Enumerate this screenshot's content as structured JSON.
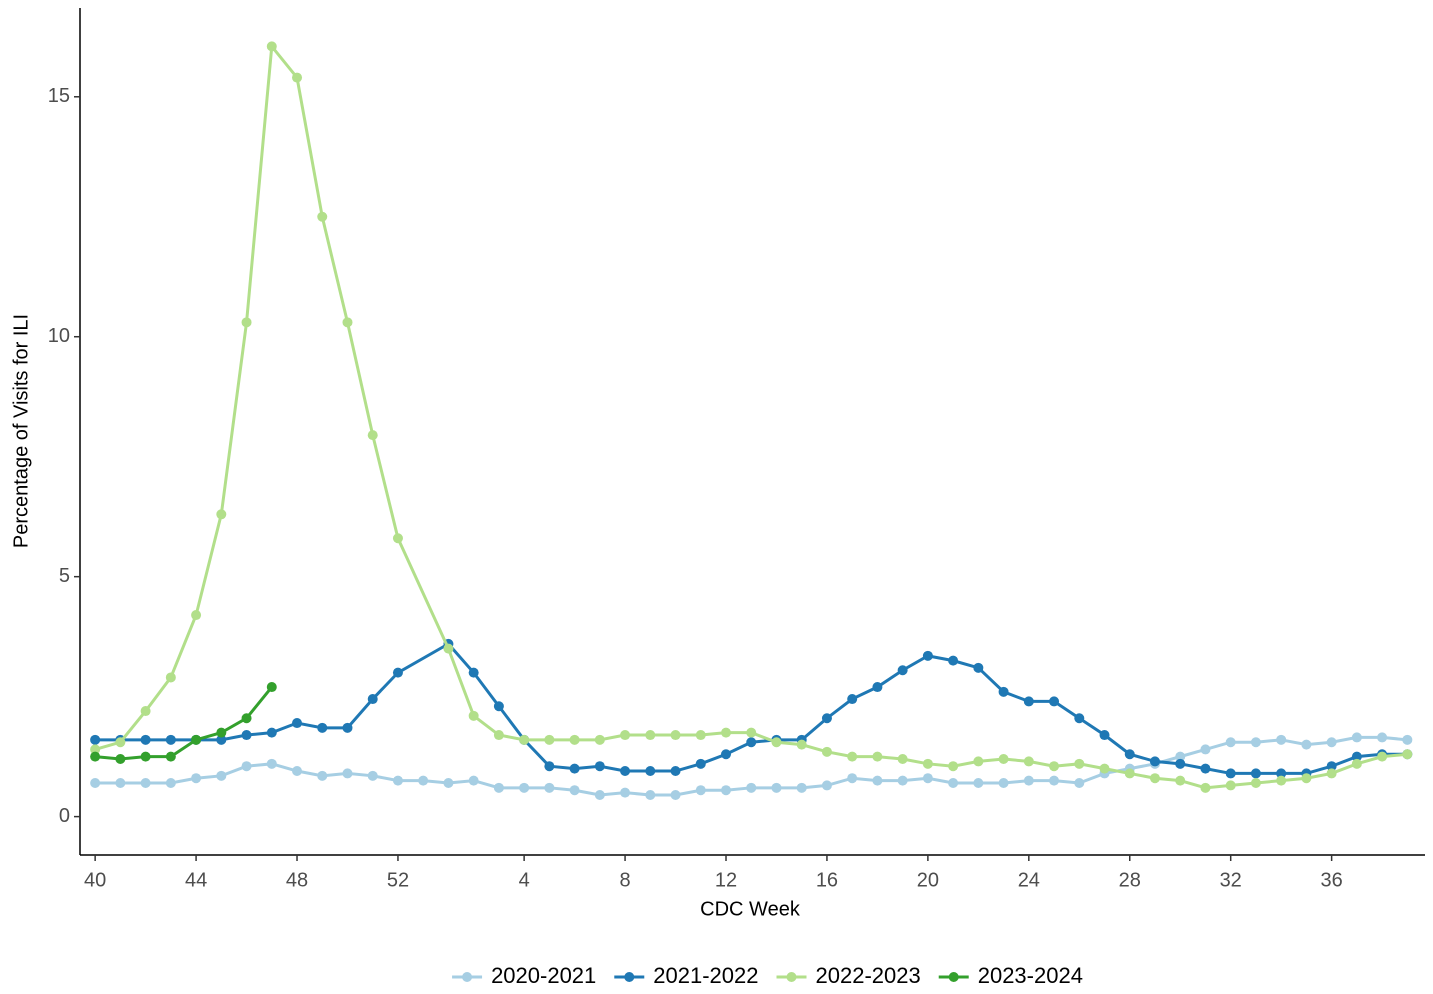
{
  "chart_data": {
    "type": "line",
    "xlabel": "CDC Week",
    "ylabel": "Percentage of Visits for ILI",
    "xlim": [
      -0.6,
      52.7
    ],
    "ylim": [
      -0.8,
      16.85
    ],
    "xticks": [
      {
        "value": 0,
        "label": "40"
      },
      {
        "value": 4,
        "label": "44"
      },
      {
        "value": 8,
        "label": "48"
      },
      {
        "value": 12,
        "label": "52"
      },
      {
        "value": 17,
        "label": "4"
      },
      {
        "value": 21,
        "label": "8"
      },
      {
        "value": 25,
        "label": "12"
      },
      {
        "value": 29,
        "label": "16"
      },
      {
        "value": 33,
        "label": "20"
      },
      {
        "value": 37,
        "label": "24"
      },
      {
        "value": 41,
        "label": "28"
      },
      {
        "value": 45,
        "label": "32"
      },
      {
        "value": 49,
        "label": "36"
      }
    ],
    "yticks": [
      0,
      5,
      10,
      15
    ],
    "legend": "bottom",
    "series": [
      {
        "name": "2020-2021",
        "color": "#a6cee3",
        "x": [
          0,
          1,
          2,
          3,
          4,
          5,
          6,
          7,
          8,
          9,
          10,
          11,
          12,
          13,
          14,
          15,
          16,
          17,
          18,
          19,
          20,
          21,
          22,
          23,
          24,
          25,
          26,
          27,
          28,
          29,
          30,
          31,
          32,
          33,
          34,
          35,
          36,
          37,
          38,
          39,
          40,
          41,
          42,
          43,
          44,
          45,
          46,
          47,
          48,
          49,
          50,
          51,
          52
        ],
        "values": [
          0.7,
          0.7,
          0.7,
          0.7,
          0.8,
          0.85,
          1.05,
          1.1,
          0.95,
          0.85,
          0.9,
          0.85,
          0.75,
          0.75,
          0.7,
          0.75,
          0.6,
          0.6,
          0.6,
          0.55,
          0.45,
          0.5,
          0.45,
          0.45,
          0.55,
          0.55,
          0.6,
          0.6,
          0.6,
          0.65,
          0.8,
          0.75,
          0.75,
          0.8,
          0.7,
          0.7,
          0.7,
          0.75,
          0.75,
          0.7,
          0.9,
          1.0,
          1.1,
          1.25,
          1.4,
          1.55,
          1.55,
          1.6,
          1.5,
          1.55,
          1.65,
          1.65,
          1.6
        ]
      },
      {
        "name": "2021-2022",
        "color": "#1f78b4",
        "x": [
          0,
          1,
          2,
          3,
          4,
          5,
          6,
          7,
          8,
          9,
          10,
          11,
          12,
          14,
          15,
          16,
          17,
          18,
          19,
          20,
          21,
          22,
          23,
          24,
          25,
          26,
          27,
          28,
          29,
          30,
          31,
          32,
          33,
          34,
          35,
          36,
          37,
          38,
          39,
          40,
          41,
          42,
          43,
          44,
          45,
          46,
          47,
          48,
          49,
          50,
          51,
          52
        ],
        "values": [
          1.6,
          1.6,
          1.6,
          1.6,
          1.6,
          1.6,
          1.7,
          1.75,
          1.95,
          1.85,
          1.85,
          2.45,
          3.0,
          3.6,
          3.0,
          2.3,
          1.6,
          1.05,
          1.0,
          1.05,
          0.95,
          0.95,
          0.95,
          1.1,
          1.3,
          1.55,
          1.6,
          1.6,
          2.05,
          2.45,
          2.7,
          3.05,
          3.35,
          3.25,
          3.1,
          2.6,
          2.4,
          2.4,
          2.05,
          1.7,
          1.3,
          1.15,
          1.1,
          1.0,
          0.9,
          0.9,
          0.9,
          0.9,
          1.05,
          1.25,
          1.3,
          1.3
        ]
      },
      {
        "name": "2022-2023",
        "color": "#b2df8a",
        "x": [
          0,
          1,
          2,
          3,
          4,
          5,
          6,
          7,
          8,
          9,
          10,
          11,
          12,
          14,
          15,
          16,
          17,
          18,
          19,
          20,
          21,
          22,
          23,
          24,
          25,
          26,
          27,
          28,
          29,
          30,
          31,
          32,
          33,
          34,
          35,
          36,
          37,
          38,
          39,
          40,
          41,
          42,
          43,
          44,
          45,
          46,
          47,
          48,
          49,
          50,
          51,
          52
        ],
        "values": [
          1.4,
          1.55,
          2.2,
          2.9,
          4.2,
          6.3,
          10.3,
          16.05,
          15.4,
          12.5,
          10.3,
          7.95,
          5.8,
          3.5,
          2.1,
          1.7,
          1.6,
          1.6,
          1.6,
          1.6,
          1.7,
          1.7,
          1.7,
          1.7,
          1.75,
          1.75,
          1.55,
          1.5,
          1.35,
          1.25,
          1.25,
          1.2,
          1.1,
          1.05,
          1.15,
          1.2,
          1.15,
          1.05,
          1.1,
          1.0,
          0.9,
          0.8,
          0.75,
          0.6,
          0.65,
          0.7,
          0.75,
          0.8,
          0.9,
          1.1,
          1.25,
          1.3
        ]
      },
      {
        "name": "2023-2024",
        "color": "#33a02c",
        "x": [
          0,
          1,
          2,
          3,
          4,
          5,
          6,
          7
        ],
        "values": [
          1.25,
          1.2,
          1.25,
          1.25,
          1.6,
          1.75,
          2.05,
          2.7
        ]
      }
    ]
  }
}
